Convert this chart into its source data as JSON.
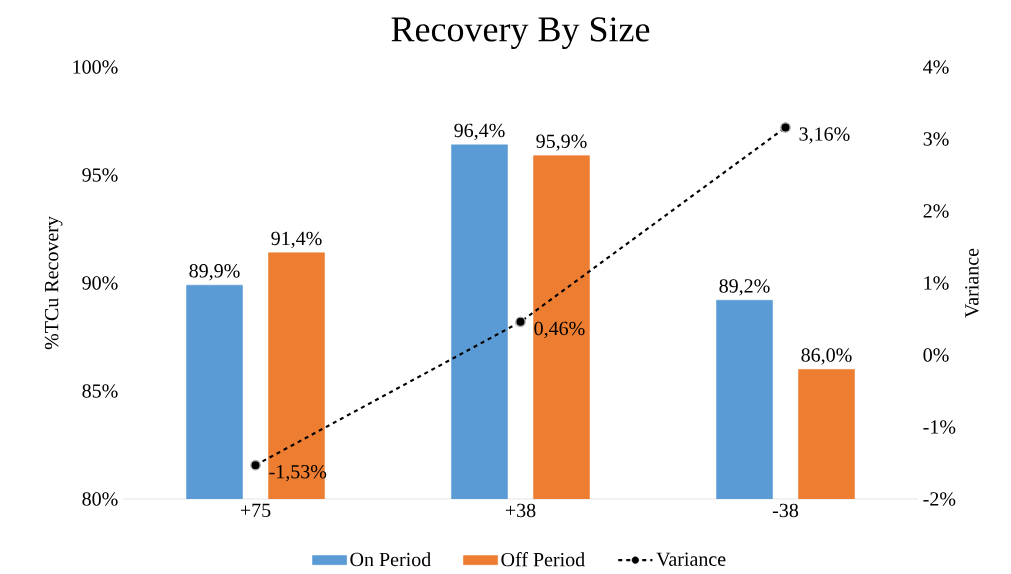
{
  "chart_data": {
    "type": "bar",
    "title": "Recovery By Size",
    "categories": [
      "+75",
      "+38",
      "-38"
    ],
    "ylabel": "%TCu Recovery",
    "y2label": "Variance",
    "series": [
      {
        "name": "On Period",
        "color": "#5b9bd5",
        "values": [
          89.9,
          96.4,
          89.2
        ],
        "value_labels": [
          "89,9%",
          "96,4%",
          "89,2%"
        ]
      },
      {
        "name": "Off Period",
        "color": "#ed7d31",
        "values": [
          91.4,
          95.9,
          86.0
        ],
        "value_labels": [
          "91,4%",
          "95,9%",
          "86,0%"
        ]
      },
      {
        "name": "Variance",
        "type": "line",
        "axis": "y2",
        "color": "#000000",
        "marker": "circle",
        "line_style": "dashed",
        "values": [
          -1.53,
          0.46,
          3.16
        ],
        "value_labels": [
          "-1,53%",
          "0,46%",
          "3,16%"
        ]
      }
    ],
    "ylim": [
      80,
      100
    ],
    "yticks": [
      {
        "value": 80,
        "label": "80%"
      },
      {
        "value": 85,
        "label": "85%"
      },
      {
        "value": 90,
        "label": "90%"
      },
      {
        "value": 95,
        "label": "95%"
      },
      {
        "value": 100,
        "label": "100%"
      }
    ],
    "y2lim": [
      -2,
      4
    ],
    "y2ticks": [
      {
        "value": -2,
        "label": "-2%"
      },
      {
        "value": -1,
        "label": "-1%"
      },
      {
        "value": 0,
        "label": "0%"
      },
      {
        "value": 1,
        "label": "1%"
      },
      {
        "value": 2,
        "label": "2%"
      },
      {
        "value": 3,
        "label": "3%"
      },
      {
        "value": 4,
        "label": "4%"
      }
    ],
    "legend": "bottom",
    "grid": false
  }
}
